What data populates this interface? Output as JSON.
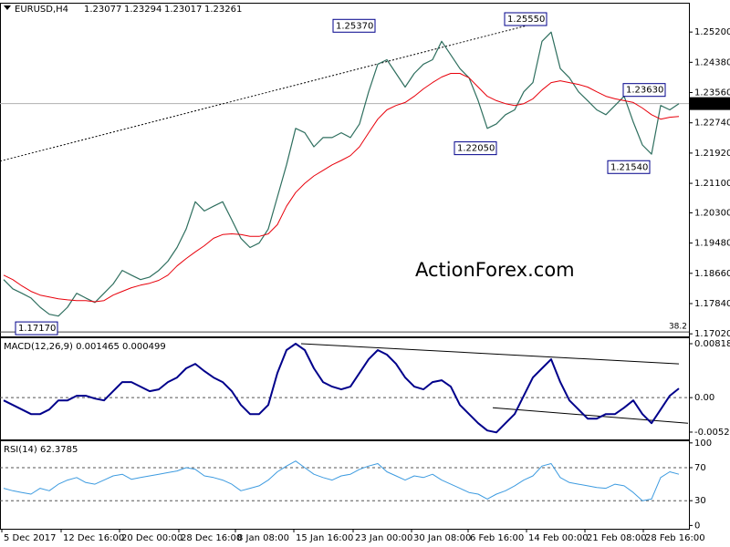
{
  "chart_data": [
    {
      "type": "line",
      "header": {
        "symbol": "EURUSD,H4",
        "open": 1.23077,
        "high": 1.23294,
        "low": 1.23017,
        "close": 1.23261
      },
      "watermark": "ActionForex.com",
      "x": [
        2,
        7,
        12,
        17,
        22,
        27,
        32,
        37,
        42,
        47,
        52,
        57,
        62,
        67,
        72,
        77,
        82,
        87,
        92,
        97,
        102,
        107,
        112,
        117,
        122,
        127,
        132,
        137,
        142,
        147,
        152,
        157,
        162,
        167,
        172,
        177,
        182,
        187,
        192,
        197,
        202,
        207,
        212,
        217,
        222,
        227,
        232,
        237,
        242,
        247,
        252,
        257,
        262,
        267,
        272,
        277,
        282,
        287,
        292,
        297,
        302,
        307,
        312,
        317,
        322,
        327,
        332,
        337,
        342,
        347,
        352,
        357,
        362,
        367,
        372
      ],
      "xlim": [
        0,
        377.5
      ],
      "ylim": [
        1.1695,
        1.2597
      ],
      "yticks": [
        {
          "value": 1.252,
          "label": "1.25200"
        },
        {
          "value": 1.2438,
          "label": "1.24380"
        },
        {
          "value": 1.2356,
          "label": "1.23560"
        },
        {
          "value": 1.2274,
          "label": "1.22740"
        },
        {
          "value": 1.2192,
          "label": "1.21920"
        },
        {
          "value": 1.211,
          "label": "1.21100"
        },
        {
          "value": 1.203,
          "label": "1.20300"
        },
        {
          "value": 1.1948,
          "label": "1.19480"
        },
        {
          "value": 1.1866,
          "label": "1.18660"
        },
        {
          "value": 1.1784,
          "label": "1.17840"
        },
        {
          "value": 1.1702,
          "label": "1.17020"
        }
      ],
      "series": [
        {
          "color": "#2f6f5f",
          "width": 1.2,
          "values": [
            1.1849,
            1.1824,
            1.1812,
            1.1799,
            1.1774,
            1.1755,
            1.175,
            1.1774,
            1.1812,
            1.1799,
            1.1787,
            1.1812,
            1.1837,
            1.1874,
            1.1861,
            1.1849,
            1.1856,
            1.1874,
            1.1899,
            1.1936,
            1.1986,
            1.206,
            1.2035,
            1.2048,
            1.206,
            1.2011,
            1.1961,
            1.1936,
            1.1948,
            1.1986,
            1.2073,
            1.216,
            1.2259,
            1.2247,
            1.2209,
            1.2234,
            1.2234,
            1.2247,
            1.2234,
            1.2271,
            1.2358,
            1.2433,
            1.2445,
            1.2408,
            1.2371,
            1.2408,
            1.2433,
            1.2445,
            1.2495,
            1.2458,
            1.2421,
            1.2396,
            1.2334,
            1.2259,
            1.2271,
            1.2296,
            1.2309,
            1.2358,
            1.2383,
            1.2495,
            1.252,
            1.2421,
            1.2396,
            1.2358,
            1.2334,
            1.2309,
            1.2296,
            1.2321,
            1.2346,
            1.2276,
            1.2214,
            1.2189,
            1.2321,
            1.2309,
            1.2326
          ]
        },
        {
          "color": "#e8000b",
          "width": 1,
          "values": [
            1.1861,
            1.1849,
            1.1832,
            1.1817,
            1.1807,
            1.1802,
            1.1797,
            1.1794,
            1.1792,
            1.1792,
            1.1789,
            1.1792,
            1.1807,
            1.1817,
            1.1827,
            1.1834,
            1.1839,
            1.1847,
            1.1861,
            1.1886,
            1.1906,
            1.1924,
            1.1941,
            1.1961,
            1.1971,
            1.1973,
            1.1971,
            1.1966,
            1.1966,
            1.1973,
            1.1998,
            1.2048,
            1.2085,
            1.211,
            1.213,
            1.2145,
            1.216,
            1.2172,
            1.2185,
            1.2209,
            1.2247,
            1.2284,
            1.2309,
            1.2321,
            1.2329,
            1.2346,
            1.2366,
            1.2383,
            1.2398,
            1.2408,
            1.2408,
            1.2396,
            1.2371,
            1.2346,
            1.2334,
            1.2326,
            1.2321,
            1.2326,
            1.2339,
            1.2363,
            1.2383,
            1.2388,
            1.2383,
            1.2378,
            1.2371,
            1.2358,
            1.2346,
            1.2339,
            1.2334,
            1.2329,
            1.2314,
            1.2296,
            1.2284,
            1.2289,
            1.2291
          ]
        }
      ],
      "trendlines": [
        {
          "x": [
            0,
            300
          ],
          "values": [
            1.217,
            1.2552
          ],
          "dashed": true
        }
      ],
      "annotations": [
        {
          "x": 182.5,
          "value": 1.2537,
          "label": "1.25370"
        },
        {
          "x": 276.5,
          "value": 1.2555,
          "label": "1.25550"
        },
        {
          "x": 249,
          "value": 1.2205,
          "label": "1.22050"
        },
        {
          "x": 341.5,
          "value": 1.2363,
          "label": "1.23630"
        },
        {
          "x": 333,
          "value": 1.2154,
          "label": "1.21540"
        },
        {
          "x": 8.5,
          "value": 1.1717,
          "label": "1.17170"
        }
      ],
      "fib": {
        "level": 38.2,
        "price": 1.1707
      }
    },
    {
      "type": "line",
      "title": "MACD(12,26,9) 0.001465 0.000499",
      "x": [
        2,
        7,
        12,
        17,
        22,
        27,
        32,
        37,
        42,
        47,
        52,
        57,
        62,
        67,
        72,
        77,
        82,
        87,
        92,
        97,
        102,
        107,
        112,
        117,
        122,
        127,
        132,
        137,
        142,
        147,
        152,
        157,
        162,
        167,
        172,
        177,
        182,
        187,
        192,
        197,
        202,
        207,
        212,
        217,
        222,
        227,
        232,
        237,
        242,
        247,
        252,
        257,
        262,
        267,
        272,
        277,
        282,
        287,
        292,
        297,
        302,
        307,
        312,
        317,
        322,
        327,
        332,
        337,
        342,
        347,
        352,
        357,
        362,
        367,
        372
      ],
      "xlim": [
        0,
        377.5
      ],
      "ylim": [
        -0.00634,
        0.00901
      ],
      "yticks": [
        0.00818,
        {
          "value": 0,
          "label": "0.00"
        },
        -0.00523
      ],
      "levels": [
        0
      ],
      "series": [
        {
          "color": "#00008b",
          "width": 2,
          "values": [
            -0.00042,
            -0.00111,
            -0.0018,
            -0.0025,
            -0.0025,
            -0.0018,
            -0.00042,
            -0.00042,
            0.00028,
            0.00028,
            -0.00014,
            -0.00042,
            0.00097,
            0.00236,
            0.00236,
            0.00166,
            0.00097,
            0.00125,
            0.00236,
            0.00305,
            0.00444,
            0.00513,
            0.00402,
            0.00305,
            0.00236,
            0.00097,
            -0.00111,
            -0.0025,
            -0.0025,
            -0.00111,
            0.00374,
            0.00721,
            0.00818,
            0.00721,
            0.00444,
            0.00236,
            0.00166,
            0.00125,
            0.00166,
            0.00374,
            0.00582,
            0.00721,
            0.00652,
            0.00513,
            0.00305,
            0.00166,
            0.00125,
            0.00236,
            0.00263,
            0.00166,
            -0.00111,
            -0.0025,
            -0.00388,
            -0.00499,
            -0.00527,
            -0.00388,
            -0.0025,
            0.00028,
            0.00305,
            0.00444,
            0.00582,
            0.00236,
            -0.00042,
            -0.0018,
            -0.00319,
            -0.00319,
            -0.0025,
            -0.0025,
            -0.00153,
            -0.00042,
            -0.0025,
            -0.00388,
            -0.0018,
            0.00028,
            0.00139
          ]
        }
      ],
      "trendlines": [
        {
          "x": [
            165,
            372
          ],
          "values": [
            0.00818,
            0.00513
          ],
          "dashed": false
        },
        {
          "x": [
            270,
            377
          ],
          "values": [
            -0.00153,
            -0.00388
          ],
          "dashed": false
        }
      ]
    },
    {
      "type": "line",
      "title": "RSI(14) 62.3785",
      "x": [
        2,
        7,
        12,
        17,
        22,
        27,
        32,
        37,
        42,
        47,
        52,
        57,
        62,
        67,
        72,
        77,
        82,
        87,
        92,
        97,
        102,
        107,
        112,
        117,
        122,
        127,
        132,
        137,
        142,
        147,
        152,
        157,
        162,
        167,
        172,
        177,
        182,
        187,
        192,
        197,
        202,
        207,
        212,
        217,
        222,
        227,
        232,
        237,
        242,
        247,
        252,
        257,
        262,
        267,
        272,
        277,
        282,
        287,
        292,
        297,
        302,
        307,
        312,
        317,
        322,
        327,
        332,
        337,
        342,
        347,
        352,
        357,
        362,
        367,
        372
      ],
      "xlim": [
        0,
        377.5
      ],
      "ylim": [
        -4,
        102
      ],
      "yticks": [
        100,
        70,
        30,
        0
      ],
      "levels": [
        70,
        30
      ],
      "series": [
        {
          "color": "#3d9be0",
          "width": 1,
          "values": [
            45,
            42,
            40,
            38,
            45,
            42,
            50,
            55,
            58,
            52,
            50,
            55,
            60,
            62,
            56,
            58,
            60,
            62,
            64,
            66,
            70,
            68,
            60,
            58,
            55,
            50,
            42,
            45,
            48,
            55,
            65,
            72,
            78,
            70,
            62,
            58,
            55,
            60,
            62,
            68,
            72,
            75,
            65,
            60,
            55,
            60,
            58,
            62,
            55,
            50,
            45,
            40,
            38,
            32,
            38,
            42,
            48,
            55,
            60,
            72,
            75,
            58,
            52,
            50,
            48,
            46,
            45,
            50,
            48,
            40,
            30,
            32,
            58,
            65,
            62
          ]
        }
      ],
      "xticks": [
        {
          "value": 1,
          "label": "5 Dec 2017"
        },
        {
          "value": 33.5,
          "label": "12 Dec 16:00"
        },
        {
          "value": 65.5,
          "label": "20 Dec 00:00"
        },
        {
          "value": 98,
          "label": "28 Dec 16:00"
        },
        {
          "value": 129,
          "label": "8 Jan 08:00"
        },
        {
          "value": 161,
          "label": "15 Jan 16:00"
        },
        {
          "value": 193.5,
          "label": "23 Jan 00:00"
        },
        {
          "value": 225.5,
          "label": "30 Jan 08:00"
        },
        {
          "value": 256.5,
          "label": "6 Feb 16:00"
        },
        {
          "value": 288.5,
          "label": "14 Feb 00:00"
        },
        {
          "value": 320.5,
          "label": "21 Feb 08:00"
        },
        {
          "value": 352.5,
          "label": "28 Feb 16:00"
        }
      ]
    }
  ]
}
